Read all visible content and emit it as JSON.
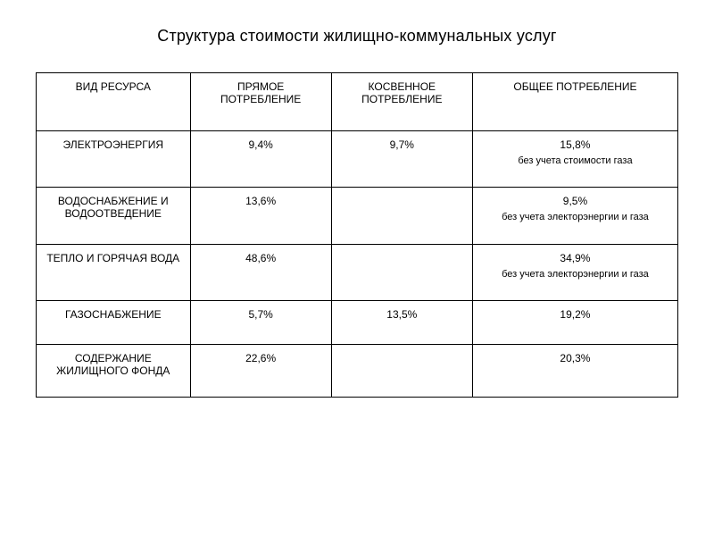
{
  "title": "Структура стоимости жилищно-коммунальных услуг",
  "table": {
    "columns": [
      "ВИД РЕСУРСА",
      "ПРЯМОЕ ПОТРЕБЛЕНИЕ",
      "КОСВЕННОЕ ПОТРЕБЛЕНИЕ",
      "ОБЩЕЕ ПОТРЕБЛЕНИЕ"
    ],
    "rows": [
      {
        "resource": "ЭЛЕКТРОЭНЕРГИЯ",
        "direct": "9,4%",
        "indirect": "9,7%",
        "total": "15,8%",
        "total_note": "без учета стоимости газа"
      },
      {
        "resource": "ВОДОСНАБЖЕНИЕ И ВОДООТВЕДЕНИЕ",
        "direct": "13,6%",
        "indirect": "",
        "total": "9,5%",
        "total_note": "без учета электорэнергии и газа"
      },
      {
        "resource": "ТЕПЛО И ГОРЯЧАЯ ВОДА",
        "direct": "48,6%",
        "indirect": "",
        "total": "34,9%",
        "total_note": "без учета электорэнергии и газа"
      },
      {
        "resource": "ГАЗОСНАБЖЕНИЕ",
        "direct": "5,7%",
        "indirect": "13,5%",
        "total": "19,2%",
        "total_note": ""
      },
      {
        "resource": "СОДЕРЖАНИЕ ЖИЛИЩНОГО ФОНДА",
        "direct": "22,6%",
        "indirect": "",
        "total": "20,3%",
        "total_note": ""
      }
    ],
    "style": {
      "type": "table",
      "border_color": "#000000",
      "background_color": "#ffffff",
      "text_color": "#000000",
      "header_fontsize_pt": 12,
      "body_fontsize_pt": 12,
      "note_fontsize_pt": 11,
      "font_family": "Arial",
      "column_widths_pct": [
        24,
        22,
        22,
        32
      ],
      "alignment": "center"
    }
  }
}
